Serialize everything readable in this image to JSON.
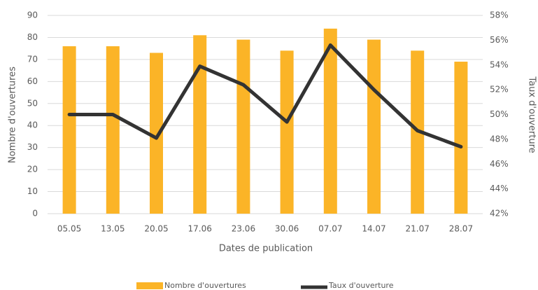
{
  "chart_data": {
    "type": "combo",
    "categories": [
      "05.05",
      "13.05",
      "20.05",
      "17.06",
      "23.06",
      "30.06",
      "07.07",
      "14.07",
      "21.07",
      "28.07"
    ],
    "x_label": "Dates de publication",
    "y_label": "Nombre d'ouvertures",
    "y2_label": "Taux d'ouverture",
    "series": [
      {
        "name": "Nombre d'ouvertures",
        "type": "bar",
        "color": "#fbb427",
        "values": [
          76,
          76,
          73,
          81,
          79,
          74,
          84,
          79,
          74,
          69
        ]
      },
      {
        "name": "Taux d'ouverture",
        "type": "line",
        "axis": "y2",
        "color": "#333333",
        "values": [
          50.0,
          50.0,
          48.1,
          53.9,
          52.4,
          49.4,
          55.6,
          52.0,
          48.7,
          47.4
        ]
      }
    ],
    "ylim": [
      0,
      90
    ],
    "yticks": [
      0,
      10,
      20,
      30,
      40,
      50,
      60,
      70,
      80,
      90
    ],
    "y2lim": [
      42,
      58
    ],
    "y2ticks": [
      {
        "value": 42,
        "label": "42%"
      },
      {
        "value": 44,
        "label": "44%"
      },
      {
        "value": 46,
        "label": "46%"
      },
      {
        "value": 48,
        "label": "48%"
      },
      {
        "value": 50,
        "label": "50%"
      },
      {
        "value": 52,
        "label": "52%"
      },
      {
        "value": 54,
        "label": "54%"
      },
      {
        "value": 56,
        "label": "56%"
      },
      {
        "value": 58,
        "label": "58%"
      }
    ],
    "grid": true,
    "legend": "bottom"
  }
}
